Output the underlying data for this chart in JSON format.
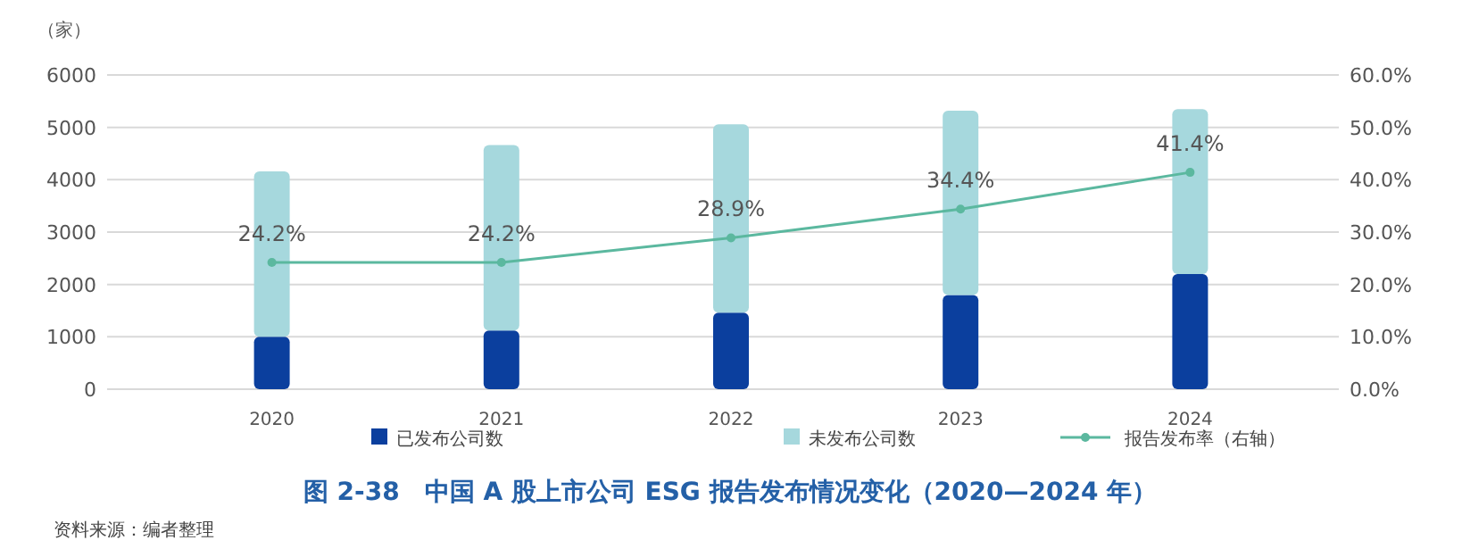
{
  "chart_data": {
    "type": "bar",
    "title": "图 2-38　中国 A 股上市公司 ESG 报告发布情况变化（2020—2024 年）",
    "ylabel": "（家）",
    "annotations": [
      "资料来源：编者整理"
    ],
    "categories": [
      "2020",
      "2021",
      "2022",
      "2023",
      "2024"
    ],
    "stacked": true,
    "series": [
      {
        "name": "已发布公司数",
        "color": "#0b3f9e",
        "values": [
          1000,
          1120,
          1460,
          1800,
          2200
        ]
      },
      {
        "name": "未发布公司数",
        "color": "#a6d8dd",
        "values": [
          3160,
          3540,
          3600,
          3520,
          3150
        ]
      },
      {
        "name": "报告发布率（右轴）",
        "type": "line",
        "axis": "y2",
        "color": "#5bb89f",
        "marker": "circle",
        "values": [
          24.2,
          24.2,
          28.9,
          34.4,
          41.4
        ],
        "value_labels": [
          "24.2%",
          "24.2%",
          "28.9%",
          "34.4%",
          "41.4%"
        ]
      }
    ],
    "ylim": [
      0,
      6000
    ],
    "yticks": [
      0,
      1000,
      2000,
      3000,
      4000,
      5000,
      6000
    ],
    "y2lim": [
      0,
      60
    ],
    "y2ticks": [
      {
        "value": 0,
        "label": "0.0%"
      },
      {
        "value": 10,
        "label": "10.0%"
      },
      {
        "value": 20,
        "label": "20.0%"
      },
      {
        "value": 30,
        "label": "30.0%"
      },
      {
        "value": 40,
        "label": "40.0%"
      },
      {
        "value": 50,
        "label": "50.0%"
      },
      {
        "value": 60,
        "label": "60.0%"
      }
    ],
    "grid": "y",
    "legend": "bottom"
  }
}
